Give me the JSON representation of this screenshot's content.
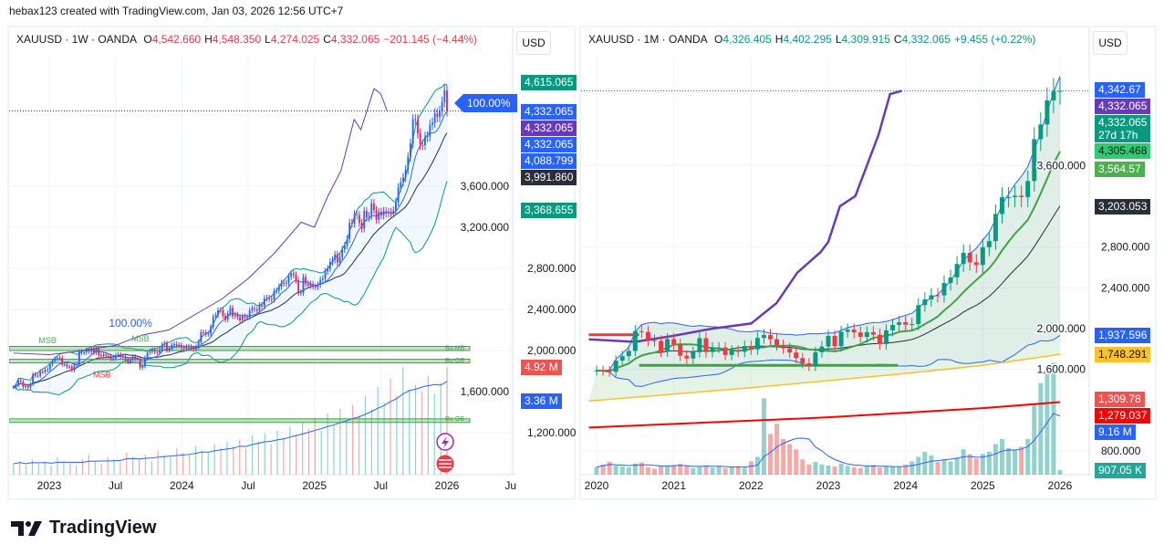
{
  "header": {
    "attribution": "hebax123 created with TradingView.com, Jan 03, 2026 12:56 UTC+7"
  },
  "logo": {
    "text": "TradingView",
    "icon": "tradingview-logo"
  },
  "chart_data": [
    {
      "type": "candlestick",
      "symbol": "XAUUSD · 1W · OANDA",
      "ohlc": {
        "o_label": "O",
        "o": "4,542.660",
        "h_label": "H",
        "h": "4,548.350",
        "l_label": "L",
        "l": "4,274.025",
        "c_label": "C",
        "c": "4,332.065",
        "change": "−201.145 (−4.44%)"
      },
      "change_color": "#f23645",
      "currency": "USD",
      "interval": "weekly",
      "start": 2022.73,
      "end": 2026.0,
      "ylim": [
        1000,
        4700
      ],
      "y_ticks": [
        {
          "v": 1200,
          "t": "1,200.000"
        },
        {
          "v": 1600,
          "t": "1,600.000"
        },
        {
          "v": 2000,
          "t": "2,000.000"
        },
        {
          "v": 2400,
          "t": "2,400.000"
        },
        {
          "v": 2800,
          "t": "2,800.000"
        },
        {
          "v": 3200,
          "t": "3,200.000"
        },
        {
          "v": 3600,
          "t": "3,600.000"
        }
      ],
      "x_ticks": [
        {
          "d": 2023.0,
          "t": "2023"
        },
        {
          "d": 2023.5,
          "t": "Jul"
        },
        {
          "d": 2024.0,
          "t": "2024"
        },
        {
          "d": 2024.5,
          "t": "Jul"
        },
        {
          "d": 2025.0,
          "t": "2025"
        },
        {
          "d": 2025.5,
          "t": "Jul"
        },
        {
          "d": 2026.0,
          "t": "2026"
        },
        {
          "d": 2026.48,
          "t": "Ju"
        }
      ],
      "closes": [
        1643,
        1660,
        1710,
        1695,
        1645,
        1657,
        1640,
        1675,
        1770,
        1755,
        1755,
        1797,
        1792,
        1810,
        1815,
        1866,
        1898,
        1921,
        1926,
        1929,
        1865,
        1867,
        1842,
        1841,
        1810,
        1855,
        1868,
        1990,
        1978,
        1983,
        2004,
        1990,
        2015,
        1978,
        2019,
        1955,
        1946,
        1962,
        1948,
        1945,
        1919,
        1924,
        1955,
        1961,
        1939,
        1942,
        1913,
        1889,
        1914,
        1940,
        1922,
        1924,
        1832,
        1848,
        1929,
        1981,
        1992,
        2006,
        1985,
        1981,
        2003,
        2056,
        2071,
        2004,
        2019,
        2053,
        2063,
        2049,
        2054,
        2029,
        2018,
        2039,
        2038,
        2024,
        2013,
        2035,
        2083,
        2179,
        2178,
        2160,
        2165,
        2229,
        2329,
        2344,
        2392,
        2391,
        2338,
        2301,
        2360,
        2415,
        2334,
        2348,
        2325,
        2293,
        2333,
        2321,
        2326,
        2392,
        2411,
        2400,
        2387,
        2443,
        2431,
        2509,
        2512,
        2503,
        2497,
        2577,
        2580,
        2622,
        2658,
        2653,
        2657,
        2720,
        2749,
        2737,
        2685,
        2562,
        2563,
        2715,
        2650,
        2633,
        2648,
        2623,
        2621,
        2639,
        2689,
        2701,
        2770,
        2798,
        2861,
        2883,
        2937,
        2857,
        2910,
        2984,
        3022,
        3084,
        3245,
        3237,
        3326,
        3319,
        3241,
        3188,
        3358,
        3294,
        3310,
        3433,
        3368,
        3273,
        3350,
        3316,
        3357,
        3336,
        3348,
        3337,
        3363,
        3447,
        3586,
        3640,
        3685,
        3759,
        3886,
        4017,
        4250,
        4252,
        4113,
        4002,
        4000,
        4080,
        4085,
        4197,
        4218,
        4308,
        4274,
        4330,
        4420,
        4533,
        4332
      ],
      "volumes_m": [
        0.5,
        0.6,
        0.4,
        0.7,
        0.5,
        0.6,
        0.4,
        0.8,
        0.6,
        0.5,
        0.4,
        0.7,
        0.9,
        0.6,
        0.5,
        0.8,
        0.7,
        0.6,
        1.0,
        0.8,
        0.7,
        0.9,
        0.6,
        1.1,
        0.9,
        0.8,
        1.2,
        1.0,
        0.9,
        1.3,
        1.1,
        1.0,
        1.4,
        1.2,
        1.5,
        1.3,
        1.6,
        1.2,
        1.8,
        1.5,
        1.9,
        1.4,
        2.0,
        1.7,
        2.2,
        1.8,
        2.4,
        2.1,
        2.6,
        2.0,
        2.8,
        2.3,
        3.0,
        2.5,
        3.2,
        2.7,
        3.6,
        3.0,
        4.0,
        3.3,
        4.4,
        3.6,
        4.92,
        3.9,
        4.1,
        3.8,
        4.5,
        3.7,
        4.2,
        4.92
      ],
      "purple_series": [
        [
          2022.73,
          1975
        ],
        [
          2023.0,
          1960
        ],
        [
          2023.2,
          1990
        ],
        [
          2023.5,
          2050
        ],
        [
          2023.7,
          2150
        ],
        [
          2023.9,
          2200
        ],
        [
          2024.1,
          2350
        ],
        [
          2024.3,
          2500
        ],
        [
          2024.5,
          2700
        ],
        [
          2024.7,
          2950
        ],
        [
          2024.9,
          3250
        ],
        [
          2025.0,
          3200
        ],
        [
          2025.1,
          3500
        ],
        [
          2025.2,
          3750
        ],
        [
          2025.3,
          4250
        ],
        [
          2025.35,
          4150
        ],
        [
          2025.45,
          4550
        ],
        [
          2025.5,
          4500
        ],
        [
          2025.55,
          4330
        ]
      ],
      "zones": [
        {
          "label": "Bu-MB",
          "from": 2000,
          "to": 2040
        },
        {
          "label": "Bu-OB",
          "from": 1880,
          "to": 1915
        },
        {
          "label": "Bu-OB",
          "from": 1310,
          "to": 1335
        }
      ],
      "annotations": [
        {
          "text": "MSB",
          "color": "#4caf50",
          "d": 2022.92,
          "v": 2070
        },
        {
          "text": "MSB",
          "color": "#4caf50",
          "d": 2023.62,
          "v": 2090
        },
        {
          "text": "MSB",
          "color": "#f23645",
          "d": 2023.33,
          "v": 1740
        },
        {
          "text": "100.00%",
          "color": "#2962ff",
          "d": 2023.45,
          "v": 2230
        }
      ],
      "pct_badge": "100.00%",
      "price_tags": [
        {
          "text": "4,615.065",
          "v": 4615.065,
          "color": "#089981"
        },
        {
          "text": "4,332.065",
          "v": 4332.065,
          "color": "#2962ff"
        },
        {
          "text": "4,332.065",
          "v": 4332.065,
          "color": "#673ab7"
        },
        {
          "text": "4,332.065",
          "v": 4332.065,
          "color": "#2962ff"
        },
        {
          "text": "4,088.799",
          "v": 4088.799,
          "color": "#2962ff"
        },
        {
          "text": "3,991.860",
          "v": 3991.86,
          "color": "#2a2e39"
        },
        {
          "text": "3,368.655",
          "v": 3368.655,
          "color": "#089981"
        }
      ],
      "volume_tags": [
        {
          "text": "4.92 M",
          "v": 4.92,
          "color": "#f05350"
        },
        {
          "text": "3.36 M",
          "v": 3.36,
          "color": "#2962ff"
        }
      ],
      "event_icons": [
        "lightning-icon",
        "us-flag-icon"
      ]
    },
    {
      "type": "candlestick",
      "symbol": "XAUUSD · 1M · OANDA",
      "ohlc": {
        "o_label": "O",
        "o": "4,326.405",
        "h_label": "H",
        "h": "4,402.295",
        "l_label": "L",
        "l": "4,309.915",
        "c_label": "C",
        "c": "4,332.065",
        "change": "+9.455 (+0.22%)"
      },
      "change_color": "#089981",
      "currency": "USD",
      "interval": "monthly",
      "start": 2020.0,
      "end": 2026.0,
      "ylim": [
        600,
        4700
      ],
      "y_ticks": [
        {
          "v": 800,
          "t": "800.000"
        },
        {
          "v": 1600,
          "t": "1,600.000"
        },
        {
          "v": 2000,
          "t": "2,000.000"
        },
        {
          "v": 2400,
          "t": "2,400.000"
        },
        {
          "v": 2800,
          "t": "2,800.000"
        },
        {
          "v": 3600,
          "t": "3,600.000"
        }
      ],
      "x_ticks": [
        {
          "d": 2020.0,
          "t": "2020"
        },
        {
          "d": 2021.0,
          "t": "2021"
        },
        {
          "d": 2022.0,
          "t": "2022"
        },
        {
          "d": 2023.0,
          "t": "2023"
        },
        {
          "d": 2024.0,
          "t": "2024"
        },
        {
          "d": 2025.0,
          "t": "2025"
        },
        {
          "d": 2026.0,
          "t": "2026"
        }
      ],
      "closes": [
        1589,
        1585,
        1577,
        1686,
        1730,
        1781,
        1975,
        1967,
        1886,
        1879,
        1776,
        1898,
        1847,
        1734,
        1707,
        1769,
        1906,
        1770,
        1814,
        1814,
        1742,
        1783,
        1774,
        1829,
        1797,
        1909,
        1937,
        1896,
        1837,
        1807,
        1766,
        1711,
        1660,
        1633,
        1768,
        1824,
        1928,
        1827,
        1969,
        1990,
        1963,
        1919,
        1965,
        1940,
        1849,
        1983,
        2036,
        2063,
        2039,
        2044,
        2230,
        2286,
        2327,
        2326,
        2447,
        2503,
        2634,
        2744,
        2650,
        2624,
        2798,
        2858,
        3124,
        3288,
        3289,
        3303,
        3290,
        3448,
        3858,
        4002,
        4239,
        4326,
        4332
      ],
      "volumes_m": [
        1.5,
        2,
        2.5,
        1.8,
        1.6,
        1.4,
        2.2,
        2.4,
        1.5,
        1.2,
        1.8,
        1.6,
        1.9,
        2.1,
        1.7,
        1.3,
        1.5,
        1.8,
        1.4,
        1.6,
        1.3,
        1.5,
        1.7,
        1.4,
        2.6,
        3.5,
        15,
        8,
        10,
        7,
        6,
        5,
        3,
        2,
        2.5,
        2,
        1.8,
        1.6,
        2.2,
        1.7,
        1.5,
        1.3,
        1.6,
        1.9,
        1.4,
        1.7,
        1.6,
        1.5,
        2,
        2.6,
        3.5,
        4.5,
        3.8,
        2.5,
        3,
        2.6,
        3.3,
        5,
        4,
        3.2,
        4.1,
        4.5,
        6,
        7,
        5.2,
        4.8,
        5.5,
        7,
        14,
        18,
        20,
        22,
        0.9
      ],
      "purple_series": [
        [
          2019.9,
          1895
        ],
        [
          2020.5,
          1870
        ],
        [
          2021.0,
          1930
        ],
        [
          2021.5,
          2000
        ],
        [
          2022.0,
          2050
        ],
        [
          2022.33,
          2250
        ],
        [
          2022.6,
          2550
        ],
        [
          2022.9,
          2750
        ],
        [
          2023.0,
          2850
        ],
        [
          2023.15,
          3200
        ],
        [
          2023.35,
          3300
        ],
        [
          2023.5,
          3600
        ],
        [
          2023.65,
          3900
        ],
        [
          2023.8,
          4300
        ],
        [
          2023.95,
          4332
        ]
      ],
      "yellow_series": [
        [
          2019.9,
          1290
        ],
        [
          2022.0,
          1420
        ],
        [
          2024.0,
          1560
        ],
        [
          2025.0,
          1640
        ],
        [
          2026.0,
          1748
        ]
      ],
      "red_series": [
        [
          2019.9,
          1030
        ],
        [
          2023.0,
          1130
        ],
        [
          2025.0,
          1220
        ],
        [
          2026.0,
          1279
        ]
      ],
      "levels": [
        {
          "v": 1940,
          "from": 2019.9,
          "to": 2020.55,
          "color": "#f23645"
        },
        {
          "v": 1640,
          "from": 2020.55,
          "to": 2023.9,
          "color": "#43a047"
        }
      ],
      "price_tags": [
        {
          "text": "4,342.67",
          "v": 4342.67,
          "color": "#2962ff"
        },
        {
          "text": "4,332.065",
          "v": 4332.065,
          "color": "#673ab7"
        },
        {
          "text": "4,332.065",
          "sub": "27d 17h",
          "v": 4332.065,
          "color": "#089981"
        },
        {
          "text": "4,305.468",
          "v": 4305.468,
          "color": "#2ecc71",
          "dark": true
        },
        {
          "text": "3,564.57",
          "v": 3564.57,
          "color": "#4caf50"
        },
        {
          "text": "3,203.053",
          "v": 3203.053,
          "color": "#2a2e39"
        },
        {
          "text": "1,937.596",
          "v": 1937.596,
          "color": "#2962ff"
        },
        {
          "text": "1,748.291",
          "v": 1748.291,
          "color": "#fbc02d",
          "dark": true
        },
        {
          "text": "1,309.78",
          "v": 1309.78,
          "color": "#f05350"
        },
        {
          "text": "1,279.037",
          "v": 1279.037,
          "color": "#ff0000"
        }
      ],
      "volume_tags": [
        {
          "text": "9.16 M",
          "v": 9.16,
          "color": "#2962ff"
        },
        {
          "text": "907.05 K",
          "v": 0.907,
          "color": "#26a69a"
        }
      ]
    }
  ]
}
